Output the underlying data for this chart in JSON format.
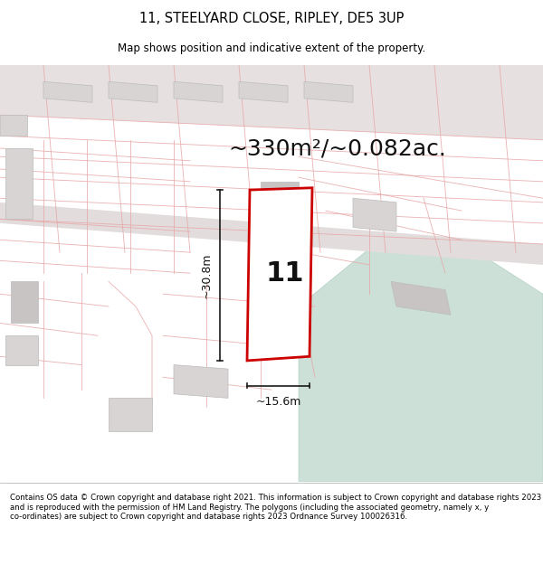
{
  "title": "11, STEELYARD CLOSE, RIPLEY, DE5 3UP",
  "subtitle": "Map shows position and indicative extent of the property.",
  "area_text": "~330m²/~0.082ac.",
  "dim_width": "~15.6m",
  "dim_height": "~30.8m",
  "plot_number": "11",
  "footer": "Contains OS data © Crown copyright and database right 2021. This information is subject to Crown copyright and database rights 2023 and is reproduced with the permission of HM Land Registry. The polygons (including the associated geometry, namely x, y co-ordinates) are subject to Crown copyright and database rights 2023 Ordnance Survey 100026316.",
  "bg_map_color": "#f2eeee",
  "water_color": "#cce0d8",
  "plot_outline_color": "#cc0000",
  "dim_line_color": "#1a1a1a",
  "title_color": "#000000",
  "footer_color": "#000000",
  "cadastral_color": "#e8a8a8",
  "road_gray_color": "#d8d4d4",
  "building_fill": "#d8d4d4",
  "building_edge": "#bbbbbb",
  "area_fontsize": 18,
  "plot_num_fontsize": 22,
  "dim_fontsize": 9
}
